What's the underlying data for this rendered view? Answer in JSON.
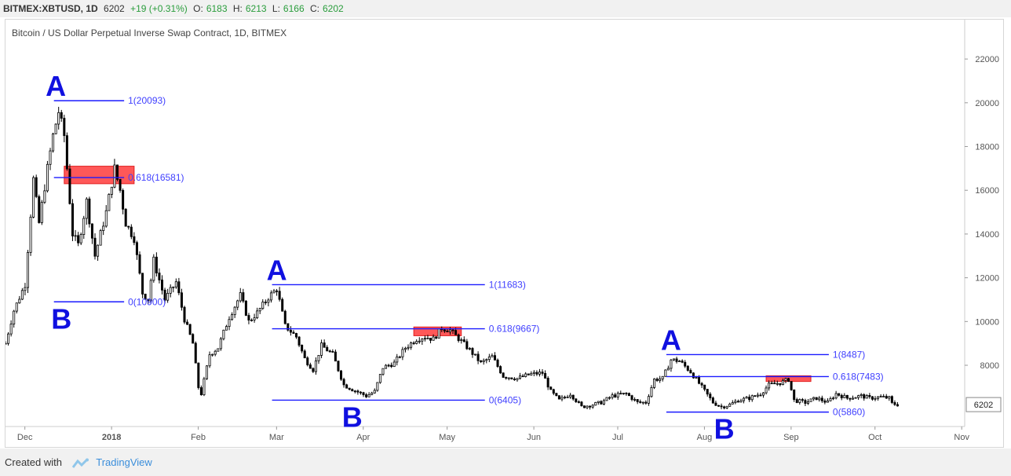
{
  "header": {
    "symbol": "BITMEX:XBTUSD, 1D",
    "last": "6202",
    "change": "+19 (+0.31%)",
    "o_label": "O:",
    "o_value": "6183",
    "h_label": "H:",
    "h_value": "6213",
    "l_label": "L:",
    "l_value": "6166",
    "c_label": "C:",
    "c_value": "6202"
  },
  "footer": {
    "created_with": "Created with",
    "brand": "TradingView"
  },
  "colors": {
    "candle": "#000000",
    "fib_line": "#1a1aff",
    "fib_text": "#3f3fff",
    "marker_text": "#1010e0",
    "zone_fill": "#ff3b3b",
    "price_tag": "#ffffff",
    "axis_text": "#555555",
    "grid": "#e8e8e8"
  },
  "chart_data": {
    "type": "candlestick",
    "title": "Bitcoin / US Dollar Perpetual Inverse Swap Contract, 1D, BITMEX",
    "y_axis": {
      "position": "right",
      "ticks": [
        22000,
        20000,
        18000,
        16000,
        14000,
        12000,
        10000,
        8000
      ],
      "range": [
        5200,
        23800
      ]
    },
    "x_axis": {
      "ticks": [
        "Dec",
        "2018",
        "Feb",
        "Mar",
        "Apr",
        "May",
        "Jun",
        "Jul",
        "Aug",
        "Sep",
        "Oct",
        "Nov"
      ],
      "bold_ticks": [
        "2018"
      ],
      "range": [
        "2017-11-28",
        "2018-11-06"
      ]
    },
    "last_price": "6202",
    "price_path": [
      [
        "2017-11-28",
        9000
      ],
      [
        "2017-12-01",
        10500
      ],
      [
        "2017-12-05",
        11700
      ],
      [
        "2017-12-08",
        16500
      ],
      [
        "2017-12-10",
        14500
      ],
      [
        "2017-12-13",
        17000
      ],
      [
        "2017-12-15",
        18500
      ],
      [
        "2017-12-17",
        19600
      ],
      [
        "2017-12-19",
        18500
      ],
      [
        "2017-12-22",
        14000
      ],
      [
        "2017-12-24",
        13500
      ],
      [
        "2017-12-27",
        15500
      ],
      [
        "2017-12-30",
        13000
      ],
      [
        "2018-01-03",
        15000
      ],
      [
        "2018-01-06",
        17000
      ],
      [
        "2018-01-08",
        16000
      ],
      [
        "2018-01-10",
        14500
      ],
      [
        "2018-01-13",
        13800
      ],
      [
        "2018-01-16",
        11300
      ],
      [
        "2018-01-18",
        11000
      ],
      [
        "2018-01-20",
        12800
      ],
      [
        "2018-01-24",
        11000
      ],
      [
        "2018-01-28",
        11800
      ],
      [
        "2018-01-31",
        10100
      ],
      [
        "2018-02-03",
        9000
      ],
      [
        "2018-02-05",
        7000
      ],
      [
        "2018-02-06",
        6700
      ],
      [
        "2018-02-09",
        8500
      ],
      [
        "2018-02-12",
        8800
      ],
      [
        "2018-02-16",
        10200
      ],
      [
        "2018-02-20",
        11200
      ],
      [
        "2018-02-23",
        10000
      ],
      [
        "2018-02-26",
        10400
      ],
      [
        "2018-03-02",
        11100
      ],
      [
        "2018-03-05",
        11500
      ],
      [
        "2018-03-08",
        9800
      ],
      [
        "2018-03-12",
        9300
      ],
      [
        "2018-03-15",
        8300
      ],
      [
        "2018-03-18",
        7800
      ],
      [
        "2018-03-21",
        8900
      ],
      [
        "2018-03-25",
        8500
      ],
      [
        "2018-03-29",
        7100
      ],
      [
        "2018-04-01",
        6900
      ],
      [
        "2018-04-06",
        6600
      ],
      [
        "2018-04-09",
        6800
      ],
      [
        "2018-04-12",
        7900
      ],
      [
        "2018-04-16",
        8100
      ],
      [
        "2018-04-20",
        8800
      ],
      [
        "2018-04-24",
        9200
      ],
      [
        "2018-04-27",
        9300
      ],
      [
        "2018-04-30",
        9200
      ],
      [
        "2018-05-03",
        9700
      ],
      [
        "2018-05-06",
        9600
      ],
      [
        "2018-05-10",
        9100
      ],
      [
        "2018-05-13",
        8700
      ],
      [
        "2018-05-17",
        8100
      ],
      [
        "2018-05-21",
        8400
      ],
      [
        "2018-05-25",
        7500
      ],
      [
        "2018-05-30",
        7400
      ],
      [
        "2018-06-04",
        7600
      ],
      [
        "2018-06-08",
        7650
      ],
      [
        "2018-06-11",
        6800
      ],
      [
        "2018-06-14",
        6400
      ],
      [
        "2018-06-18",
        6700
      ],
      [
        "2018-06-22",
        6100
      ],
      [
        "2018-06-26",
        6200
      ],
      [
        "2018-06-29",
        6300
      ],
      [
        "2018-07-03",
        6600
      ],
      [
        "2018-07-08",
        6700
      ],
      [
        "2018-07-12",
        6300
      ],
      [
        "2018-07-15",
        6300
      ],
      [
        "2018-07-18",
        7350
      ],
      [
        "2018-07-21",
        7400
      ],
      [
        "2018-07-24",
        8250
      ],
      [
        "2018-07-27",
        8200
      ],
      [
        "2018-07-31",
        7700
      ],
      [
        "2018-08-04",
        7000
      ],
      [
        "2018-08-08",
        6300
      ],
      [
        "2018-08-11",
        6100
      ],
      [
        "2018-08-14",
        6200
      ],
      [
        "2018-08-17",
        6400
      ],
      [
        "2018-08-21",
        6500
      ],
      [
        "2018-08-25",
        6700
      ],
      [
        "2018-08-28",
        7100
      ],
      [
        "2018-09-01",
        7200
      ],
      [
        "2018-09-04",
        7350
      ],
      [
        "2018-09-06",
        6400
      ],
      [
        "2018-09-10",
        6300
      ],
      [
        "2018-09-14",
        6500
      ],
      [
        "2018-09-18",
        6300
      ],
      [
        "2018-09-21",
        6700
      ],
      [
        "2018-09-25",
        6500
      ],
      [
        "2018-09-30",
        6600
      ],
      [
        "2018-10-03",
        6500
      ],
      [
        "2018-10-07",
        6550
      ],
      [
        "2018-10-10",
        6500
      ],
      [
        "2018-10-11",
        6250
      ],
      [
        "2018-10-13",
        6202
      ]
    ],
    "fib_groups": [
      {
        "start": "2017-12-17",
        "end": "2018-01-01",
        "high": 20093,
        "low": 10900,
        "level_618": 16581,
        "label_1": "1(20093)",
        "label_618": "0.618(16581)",
        "label_0": "0(10900)",
        "zone_start": "2017-12-19",
        "zone_end": "2018-01-13",
        "zone_top": 17100,
        "zone_bottom": 16300
      },
      {
        "start": "2018-03-05",
        "end": "2018-05-10",
        "high": 11683,
        "low": 6405,
        "level_618": 9667,
        "label_1": "1(11683)",
        "label_618": "0.618(9667)",
        "label_0": "0(6405)",
        "zone_start": "2018-04-23",
        "zone_end": "2018-05-10",
        "zone_top": 9750,
        "zone_bottom": 9350
      },
      {
        "start": "2018-07-24",
        "end": "2018-09-10",
        "high": 8487,
        "low": 5860,
        "level_618": 7483,
        "label_1": "1(8487)",
        "label_618": "0.618(7483)",
        "label_0": "0(5860)",
        "zone_start": "2018-08-27",
        "zone_end": "2018-09-12",
        "zone_top": 7520,
        "zone_bottom": 7260
      }
    ],
    "markers": [
      {
        "text": "A",
        "date": "2017-12-16",
        "anchor": 20093,
        "pos": "above"
      },
      {
        "text": "B",
        "date": "2017-12-18",
        "anchor": 10900,
        "pos": "below"
      },
      {
        "text": "A",
        "date": "2018-03-05",
        "anchor": 11683,
        "pos": "above"
      },
      {
        "text": "B",
        "date": "2018-04-01",
        "anchor": 6405,
        "pos": "below"
      },
      {
        "text": "A",
        "date": "2018-07-24",
        "anchor": 8487,
        "pos": "above"
      },
      {
        "text": "B",
        "date": "2018-08-12",
        "anchor": 5860,
        "pos": "below"
      }
    ]
  }
}
